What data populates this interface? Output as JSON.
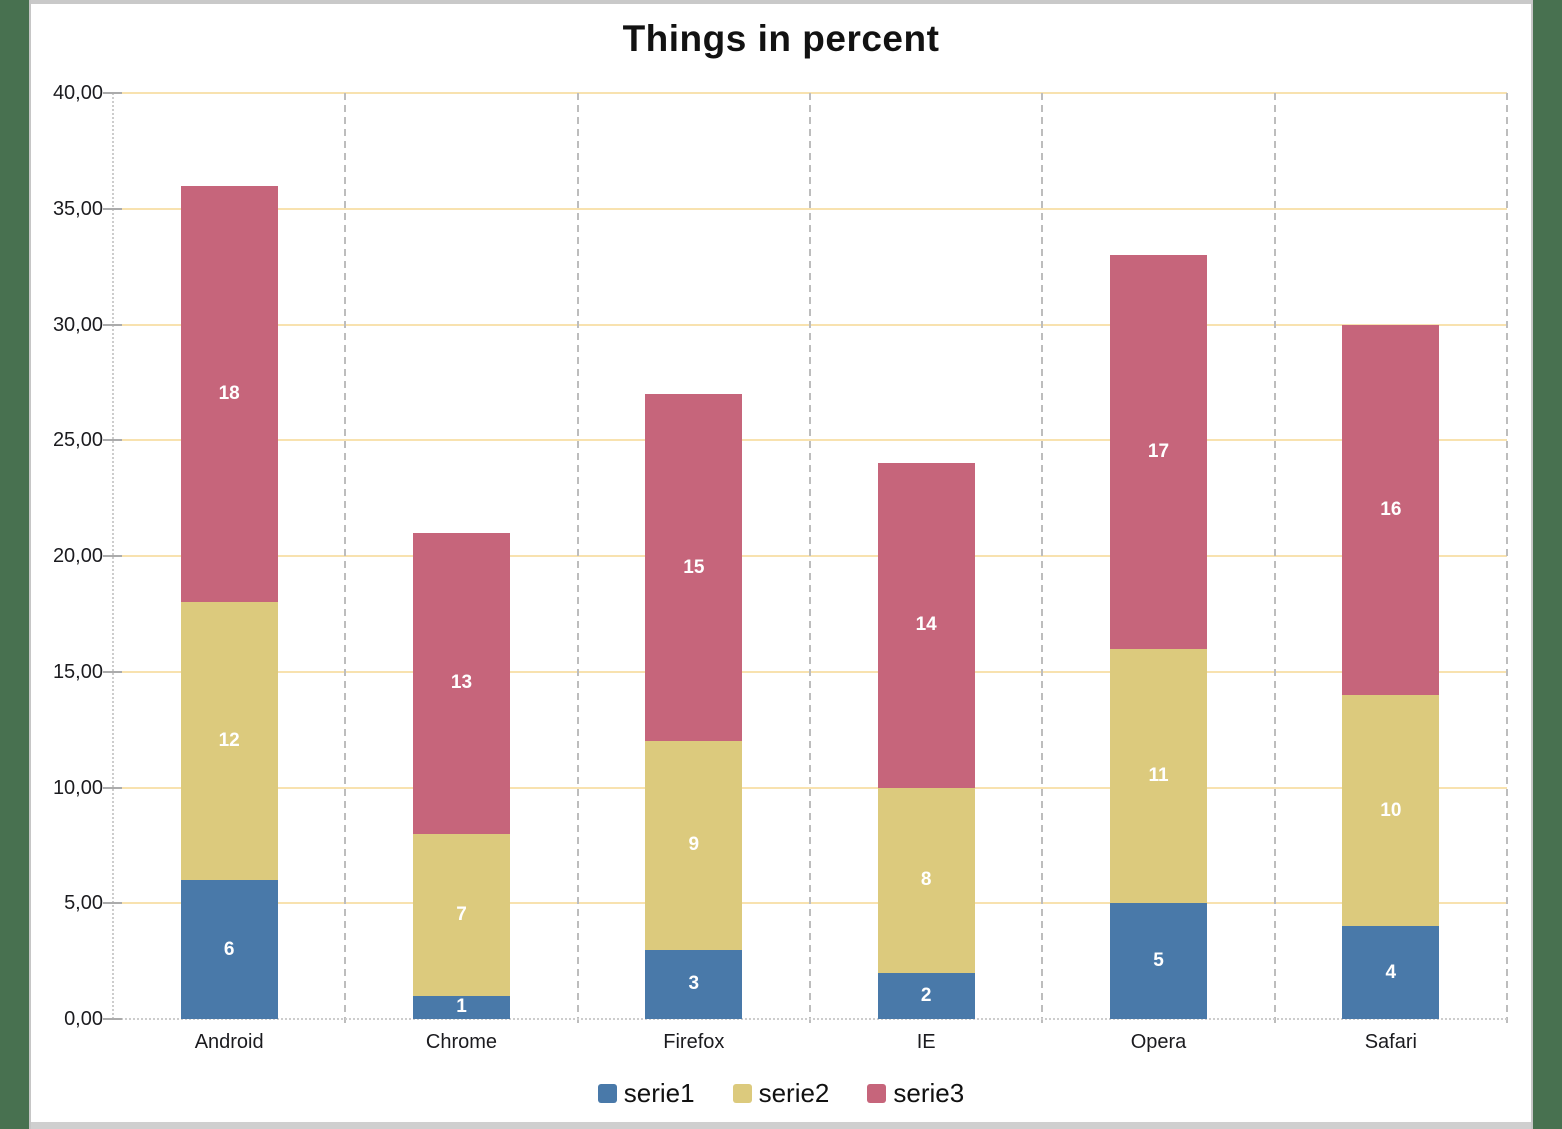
{
  "chart_data": {
    "type": "bar",
    "stacked": true,
    "title": "Things in percent",
    "categories": [
      "Android",
      "Chrome",
      "Firefox",
      "IE",
      "Opera",
      "Safari"
    ],
    "series": [
      {
        "name": "serie1",
        "color": "#4979A9",
        "values": [
          6,
          1,
          3,
          2,
          5,
          4
        ]
      },
      {
        "name": "serie2",
        "color": "#DCCA7D",
        "values": [
          12,
          7,
          9,
          8,
          11,
          10
        ]
      },
      {
        "name": "serie3",
        "color": "#C6657B",
        "values": [
          18,
          13,
          15,
          14,
          17,
          16
        ]
      }
    ],
    "ylim": [
      0,
      40
    ],
    "ytick_step": 5,
    "ytick_labels": [
      "0,00",
      "5,00",
      "10,00",
      "15,00",
      "20,00",
      "25,00",
      "30,00",
      "35,00",
      "40,00"
    ],
    "grid": true,
    "legend_position": "bottom",
    "data_labels": "inside-center, white bold"
  },
  "colors": {
    "gridline_horizontal": "#F8E2AF",
    "gridline_vertical_dash": "#BDBDBD",
    "axis_dotted": "#CDCDCD",
    "tick_mark": "#ABABAB",
    "text": "#1B1B1F",
    "frame_green": "#487150",
    "frame_border": "#C6C6C6",
    "canvas_background": "#FFFFFF"
  }
}
